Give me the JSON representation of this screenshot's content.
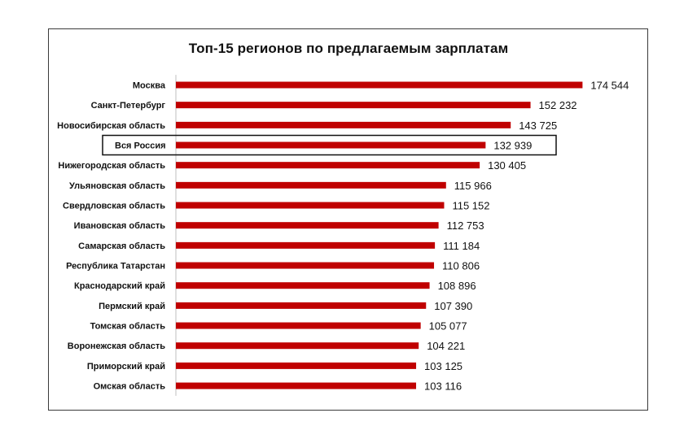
{
  "chart_data": {
    "type": "bar",
    "orientation": "horizontal",
    "title": "Топ-15 регионов по предлагаемым зарплатам",
    "categories": [
      "Москва",
      "Санкт-Петербург",
      "Новосибирская область",
      "Вся Россия",
      "Нижегородская область",
      "Ульяновская область",
      "Свердловская область",
      "Ивановская область",
      "Самарская область",
      "Республика Татарстан",
      "Краснодарский край",
      "Пермский край",
      "Томская область",
      "Воронежская область",
      "Приморский край",
      "Омская область"
    ],
    "values": [
      174544,
      152232,
      143725,
      132939,
      130405,
      115966,
      115152,
      112753,
      111184,
      110806,
      108896,
      107390,
      105077,
      104221,
      103125,
      103116
    ],
    "value_labels": [
      "174 544",
      "152 232",
      "143 725",
      "132 939",
      "130 405",
      "115 966",
      "115 152",
      "112 753",
      "111 184",
      "110 806",
      "108 896",
      "107 390",
      "105 077",
      "104 221",
      "103 125",
      "103 116"
    ],
    "highlighted_category": "Вся Россия",
    "xlim": [
      0,
      180000
    ],
    "grid": false,
    "colors": {
      "bar": "#c00000",
      "highlight_box": "#111111"
    }
  }
}
